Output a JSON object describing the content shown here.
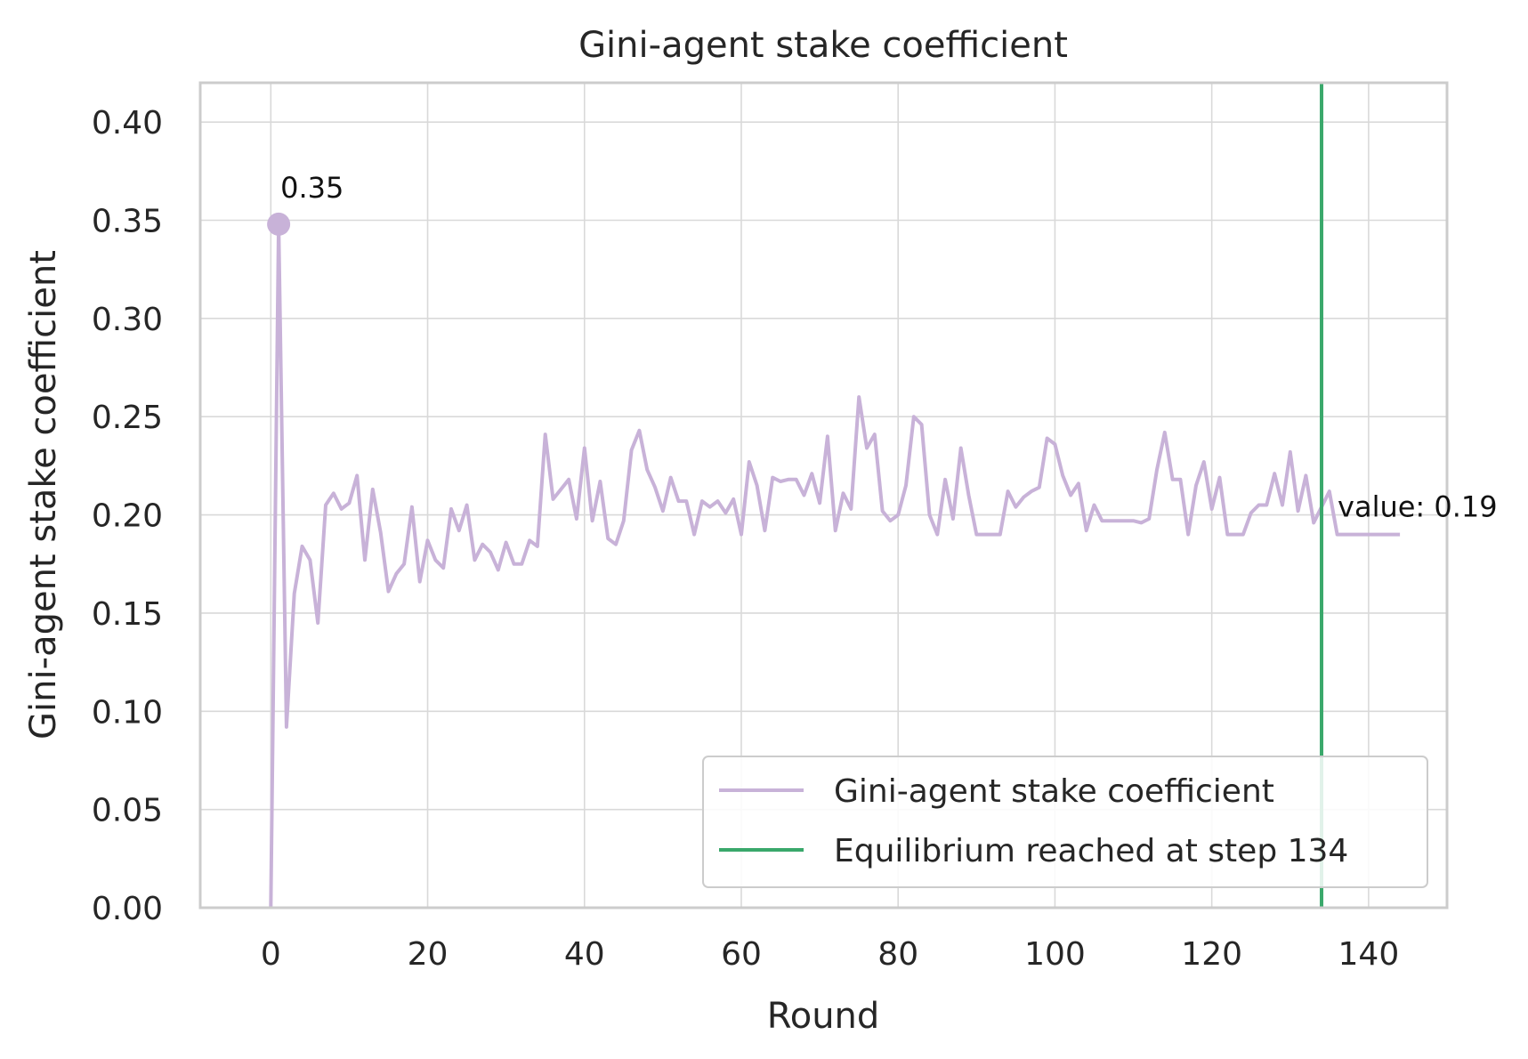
{
  "chart_data": {
    "type": "line",
    "title": "Gini-agent stake coefficient",
    "xlabel": "Round",
    "ylabel": "Gini-agent stake coefficient",
    "xlim": [
      -9,
      150
    ],
    "ylim": [
      0,
      0.42
    ],
    "xticks": [
      0,
      20,
      40,
      60,
      80,
      100,
      120,
      140
    ],
    "yticks": [
      0.0,
      0.05,
      0.1,
      0.15,
      0.2,
      0.25,
      0.3,
      0.35,
      0.4
    ],
    "ytick_labels": [
      "0.00",
      "0.05",
      "0.10",
      "0.15",
      "0.20",
      "0.25",
      "0.30",
      "0.35",
      "0.40"
    ],
    "grid": true,
    "legend_position": "bottom-right",
    "series": [
      {
        "name": "Gini-agent stake coefficient",
        "color": "#c8b2d8",
        "x": [
          0,
          1,
          2,
          3,
          4,
          5,
          6,
          7,
          8,
          9,
          10,
          11,
          12,
          13,
          14,
          15,
          16,
          17,
          18,
          19,
          20,
          21,
          22,
          23,
          24,
          25,
          26,
          27,
          28,
          29,
          30,
          31,
          32,
          33,
          34,
          35,
          36,
          37,
          38,
          39,
          40,
          41,
          42,
          43,
          44,
          45,
          46,
          47,
          48,
          49,
          50,
          51,
          52,
          53,
          54,
          55,
          56,
          57,
          58,
          59,
          60,
          61,
          62,
          63,
          64,
          65,
          66,
          67,
          68,
          69,
          70,
          71,
          72,
          73,
          74,
          75,
          76,
          77,
          78,
          79,
          80,
          81,
          82,
          83,
          84,
          85,
          86,
          87,
          88,
          89,
          90,
          91,
          92,
          93,
          94,
          95,
          96,
          97,
          98,
          99,
          100,
          101,
          102,
          103,
          104,
          105,
          106,
          107,
          108,
          109,
          110,
          111,
          112,
          113,
          114,
          115,
          116,
          117,
          118,
          119,
          120,
          121,
          122,
          123,
          124,
          125,
          126,
          127,
          128,
          129,
          130,
          131,
          132,
          133,
          134,
          135,
          136,
          137,
          138,
          139,
          140,
          141,
          142,
          143,
          144
        ],
        "values": [
          0,
          0.348,
          0.092,
          0.16,
          0.184,
          0.177,
          0.145,
          0.205,
          0.211,
          0.203,
          0.206,
          0.22,
          0.177,
          0.213,
          0.191,
          0.161,
          0.17,
          0.175,
          0.204,
          0.166,
          0.187,
          0.177,
          0.173,
          0.203,
          0.192,
          0.205,
          0.177,
          0.185,
          0.181,
          0.172,
          0.186,
          0.175,
          0.175,
          0.187,
          0.184,
          0.241,
          0.208,
          0.213,
          0.218,
          0.198,
          0.234,
          0.197,
          0.217,
          0.188,
          0.185,
          0.197,
          0.233,
          0.243,
          0.223,
          0.214,
          0.202,
          0.219,
          0.207,
          0.207,
          0.19,
          0.207,
          0.204,
          0.207,
          0.201,
          0.208,
          0.19,
          0.227,
          0.215,
          0.192,
          0.219,
          0.217,
          0.218,
          0.218,
          0.21,
          0.221,
          0.206,
          0.24,
          0.192,
          0.211,
          0.203,
          0.26,
          0.234,
          0.241,
          0.202,
          0.197,
          0.2,
          0.215,
          0.25,
          0.246,
          0.2,
          0.19,
          0.218,
          0.198,
          0.234,
          0.21,
          0.19,
          0.19,
          0.19,
          0.19,
          0.212,
          0.204,
          0.209,
          0.212,
          0.214,
          0.239,
          0.236,
          0.22,
          0.21,
          0.216,
          0.192,
          0.205,
          0.197,
          0.197,
          0.197,
          0.197,
          0.197,
          0.196,
          0.198,
          0.223,
          0.242,
          0.218,
          0.218,
          0.19,
          0.215,
          0.227,
          0.203,
          0.219,
          0.19,
          0.19,
          0.19,
          0.201,
          0.205,
          0.205,
          0.221,
          0.205,
          0.232,
          0.202,
          0.22,
          0.196,
          0.204,
          0.212,
          0.19,
          0.19,
          0.19,
          0.19,
          0.19,
          0.19,
          0.19,
          0.19,
          0.19
        ]
      },
      {
        "name": "Equilibrium reached at step 134",
        "color": "#3aa86b",
        "type": "vline",
        "x": 134
      }
    ],
    "annotations": [
      {
        "text": "0.35",
        "x": 1,
        "y": 0.348,
        "marker": true
      },
      {
        "text": "value: 0.19",
        "x": 134,
        "y": 0.19,
        "marker": false
      }
    ]
  }
}
